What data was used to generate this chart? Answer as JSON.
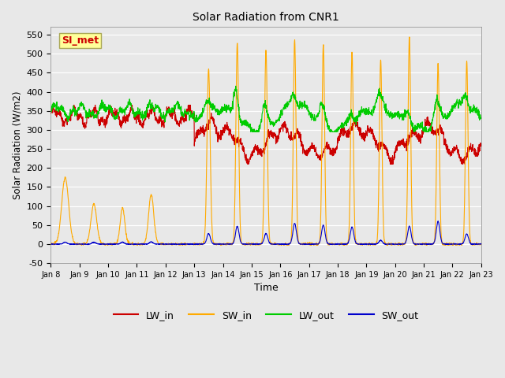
{
  "title": "Solar Radiation from CNR1",
  "xlabel": "Time",
  "ylabel": "Solar Radiation (W/m2)",
  "ylim": [
    -50,
    570
  ],
  "yticks": [
    -50,
    0,
    50,
    100,
    150,
    200,
    250,
    300,
    350,
    400,
    450,
    500,
    550
  ],
  "fig_bg": "#e8e8e8",
  "plot_bg": "#e8e8e8",
  "colors": {
    "LW_in": "#cc0000",
    "SW_in": "#ffaa00",
    "LW_out": "#00cc00",
    "SW_out": "#0000cc"
  },
  "annotation_text": "SI_met",
  "annotation_color": "#cc0000",
  "annotation_bg": "#ffff99",
  "n_days": 15,
  "start_day": 8,
  "figsize": [
    6.4,
    4.8
  ],
  "dpi": 100
}
